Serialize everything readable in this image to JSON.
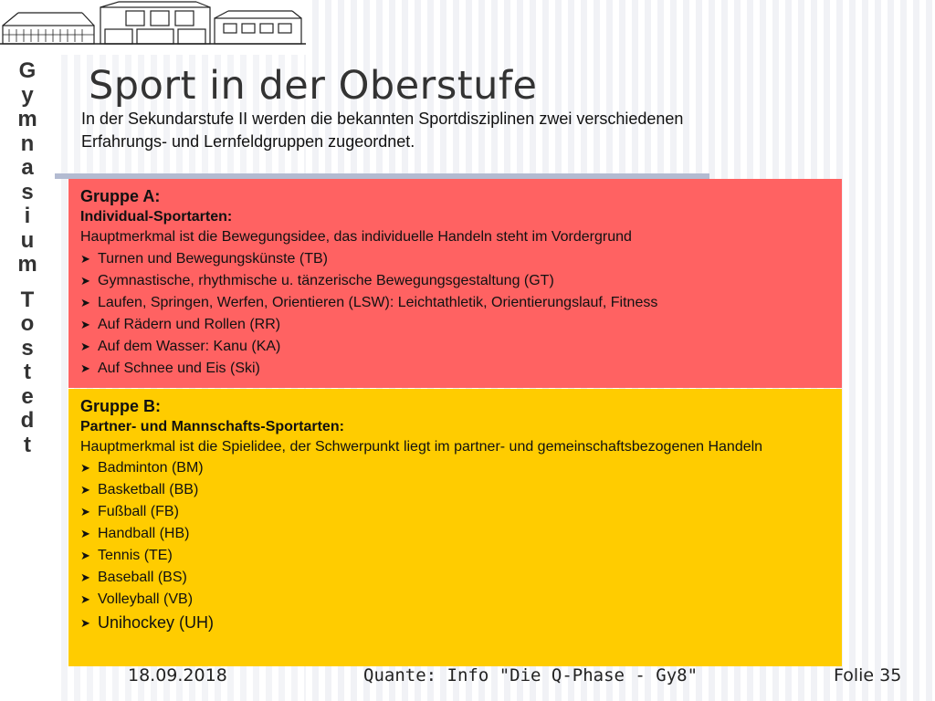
{
  "slide": {
    "title": "Sport in der Oberstufe",
    "intro": "In der Sekundarstufe II werden die bekannten Sportdisziplinen zwei verschiedenen Erfahrungs- und Lernfeldgruppen zugeordnet.",
    "school_name_vertical": [
      "G",
      "y",
      "m",
      "n",
      "a",
      "s",
      "i",
      "u",
      "m",
      "T",
      "o",
      "s",
      "t",
      "e",
      "d",
      "t"
    ]
  },
  "groups": {
    "a": {
      "title": "Gruppe A:",
      "subtitle": "Individual-Sportarten:",
      "description": "Hauptmerkmal ist die Bewegungsidee, das individuelle Handeln steht im Vordergrund",
      "items": [
        "Turnen und Bewegungskünste (TB)",
        "Gymnastische, rhythmische u. tänzerische Bewegungsgestaltung (GT)",
        "Laufen, Springen, Werfen, Orientieren  (LSW): Leichtathletik, Orientierungslauf, Fitness",
        "Auf Rädern und Rollen  (RR)",
        "Auf dem Wasser: Kanu (KA)",
        "Auf Schnee und Eis  (Ski)"
      ],
      "color": "#ff6262"
    },
    "b": {
      "title": "Gruppe B:",
      "subtitle": "Partner- und Mannschafts-Sportarten:",
      "description": "Hauptmerkmal ist die Spielidee, der Schwerpunkt liegt im partner-  und gemeinschaftsbezogenen Handeln",
      "items": [
        "Badminton  (BM)",
        "Basketball  (BB)",
        "Fußball (FB)",
        "Handball (HB)",
        "Tennis (TE)",
        "Baseball (BS)",
        "Volleyball (VB)",
        "Unihockey (UH)"
      ],
      "color": "#ffcc00"
    }
  },
  "bullet_icon": "arrowhead-bullet-icon",
  "footer": {
    "date": "18.09.2018",
    "center": "Quante: Info \"Die Q-Phase - Gy8\"",
    "slide_number": "Folie 35"
  }
}
